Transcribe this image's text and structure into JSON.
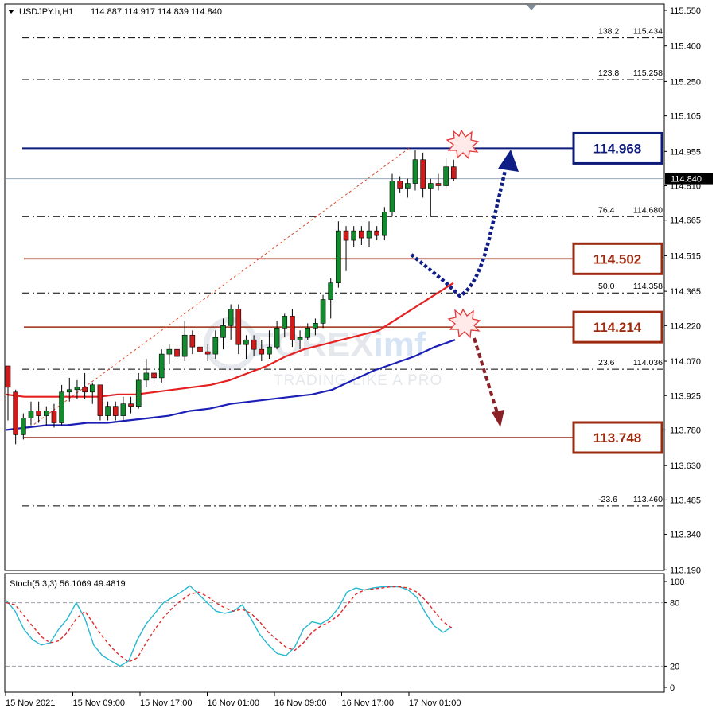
{
  "chart_data": {
    "type": "candlestick",
    "header": {
      "symbol": "USDJPY.h,H1",
      "ohlc": "114.887 114.917 114.839 114.840"
    },
    "price_axis": {
      "ylim": [
        113.15,
        115.58
      ],
      "ticks": [
        "115.550",
        "115.400",
        "115.250",
        "115.105",
        "114.955",
        "114.810",
        "114.665",
        "114.515",
        "114.365",
        "114.220",
        "114.070",
        "113.925",
        "113.780",
        "113.630",
        "113.485",
        "113.340",
        "113.190"
      ],
      "current_price": "114.840"
    },
    "time_axis": {
      "labels": [
        "15 Nov 2021",
        "15 Nov 09:00",
        "15 Nov 17:00",
        "16 Nov 01:00",
        "16 Nov 09:00",
        "16 Nov 17:00",
        "17 Nov 01:00"
      ]
    },
    "fib_levels": [
      {
        "ratio": "138.2",
        "price": 115.434,
        "text": "115.434"
      },
      {
        "ratio": "123.8",
        "price": 115.258,
        "text": "115.258"
      },
      {
        "ratio": "76.4",
        "price": 114.68,
        "text": "114.680"
      },
      {
        "ratio": "50.0",
        "price": 114.358,
        "text": "114.358"
      },
      {
        "ratio": "23.6",
        "price": 114.036,
        "text": "114.036"
      },
      {
        "ratio": "-23.6",
        "price": 113.46,
        "text": "113.460"
      }
    ],
    "key_levels": [
      {
        "price": 114.968,
        "text": "114.968",
        "color": "#0d1b7a"
      },
      {
        "price": 114.502,
        "text": "114.502",
        "color": "#9b2a10"
      },
      {
        "price": 114.214,
        "text": "114.214",
        "color": "#9b2a10"
      },
      {
        "price": 113.748,
        "text": "113.748",
        "color": "#9b2a10"
      }
    ],
    "candles": [
      {
        "o": 114.05,
        "h": 114.05,
        "l": 113.82,
        "c": 113.96
      },
      {
        "o": 113.94,
        "h": 113.95,
        "l": 113.72,
        "c": 113.76
      },
      {
        "o": 113.76,
        "h": 113.85,
        "l": 113.74,
        "c": 113.83
      },
      {
        "o": 113.83,
        "h": 113.9,
        "l": 113.8,
        "c": 113.86
      },
      {
        "o": 113.86,
        "h": 113.9,
        "l": 113.81,
        "c": 113.84
      },
      {
        "o": 113.84,
        "h": 113.88,
        "l": 113.8,
        "c": 113.86
      },
      {
        "o": 113.86,
        "h": 113.89,
        "l": 113.79,
        "c": 113.81
      },
      {
        "o": 113.81,
        "h": 113.97,
        "l": 113.8,
        "c": 113.94
      },
      {
        "o": 113.94,
        "h": 114.0,
        "l": 113.9,
        "c": 113.95
      },
      {
        "o": 113.95,
        "h": 113.99,
        "l": 113.91,
        "c": 113.96
      },
      {
        "o": 113.96,
        "h": 114.02,
        "l": 113.91,
        "c": 113.94
      },
      {
        "o": 113.94,
        "h": 113.98,
        "l": 113.89,
        "c": 113.97
      },
      {
        "o": 113.97,
        "h": 113.97,
        "l": 113.82,
        "c": 113.84
      },
      {
        "o": 113.84,
        "h": 113.9,
        "l": 113.82,
        "c": 113.88
      },
      {
        "o": 113.88,
        "h": 113.9,
        "l": 113.82,
        "c": 113.84
      },
      {
        "o": 113.84,
        "h": 113.92,
        "l": 113.82,
        "c": 113.89
      },
      {
        "o": 113.89,
        "h": 113.92,
        "l": 113.85,
        "c": 113.88
      },
      {
        "o": 113.88,
        "h": 114.02,
        "l": 113.87,
        "c": 113.99
      },
      {
        "o": 113.99,
        "h": 114.08,
        "l": 113.96,
        "c": 114.02
      },
      {
        "o": 114.02,
        "h": 114.04,
        "l": 113.98,
        "c": 114.0
      },
      {
        "o": 114.0,
        "h": 114.12,
        "l": 113.98,
        "c": 114.1
      },
      {
        "o": 114.1,
        "h": 114.14,
        "l": 114.06,
        "c": 114.12
      },
      {
        "o": 114.12,
        "h": 114.14,
        "l": 114.07,
        "c": 114.09
      },
      {
        "o": 114.09,
        "h": 114.24,
        "l": 114.07,
        "c": 114.18
      },
      {
        "o": 114.18,
        "h": 114.2,
        "l": 114.1,
        "c": 114.13
      },
      {
        "o": 114.13,
        "h": 114.18,
        "l": 114.09,
        "c": 114.11
      },
      {
        "o": 114.11,
        "h": 114.14,
        "l": 114.07,
        "c": 114.1
      },
      {
        "o": 114.1,
        "h": 114.2,
        "l": 114.08,
        "c": 114.17
      },
      {
        "o": 114.17,
        "h": 114.25,
        "l": 114.12,
        "c": 114.22
      },
      {
        "o": 114.22,
        "h": 114.31,
        "l": 114.16,
        "c": 114.29
      },
      {
        "o": 114.29,
        "h": 114.31,
        "l": 114.1,
        "c": 114.14
      },
      {
        "o": 114.14,
        "h": 114.18,
        "l": 114.08,
        "c": 114.16
      },
      {
        "o": 114.16,
        "h": 114.18,
        "l": 114.09,
        "c": 114.12
      },
      {
        "o": 114.12,
        "h": 114.16,
        "l": 114.07,
        "c": 114.1
      },
      {
        "o": 114.1,
        "h": 114.2,
        "l": 114.08,
        "c": 114.13
      },
      {
        "o": 114.13,
        "h": 114.24,
        "l": 114.12,
        "c": 114.21
      },
      {
        "o": 114.21,
        "h": 114.27,
        "l": 114.17,
        "c": 114.26
      },
      {
        "o": 114.26,
        "h": 114.29,
        "l": 114.13,
        "c": 114.16
      },
      {
        "o": 114.16,
        "h": 114.2,
        "l": 114.12,
        "c": 114.17
      },
      {
        "o": 114.17,
        "h": 114.23,
        "l": 114.16,
        "c": 114.21
      },
      {
        "o": 114.21,
        "h": 114.25,
        "l": 114.18,
        "c": 114.23
      },
      {
        "o": 114.23,
        "h": 114.35,
        "l": 114.21,
        "c": 114.33
      },
      {
        "o": 114.33,
        "h": 114.42,
        "l": 114.25,
        "c": 114.4
      },
      {
        "o": 114.4,
        "h": 114.66,
        "l": 114.38,
        "c": 114.62
      },
      {
        "o": 114.62,
        "h": 114.64,
        "l": 114.45,
        "c": 114.58
      },
      {
        "o": 114.58,
        "h": 114.64,
        "l": 114.55,
        "c": 114.62
      },
      {
        "o": 114.62,
        "h": 114.64,
        "l": 114.56,
        "c": 114.59
      },
      {
        "o": 114.59,
        "h": 114.66,
        "l": 114.55,
        "c": 114.62
      },
      {
        "o": 114.62,
        "h": 114.64,
        "l": 114.58,
        "c": 114.6
      },
      {
        "o": 114.6,
        "h": 114.72,
        "l": 114.58,
        "c": 114.7
      },
      {
        "o": 114.7,
        "h": 114.86,
        "l": 114.68,
        "c": 114.83
      },
      {
        "o": 114.83,
        "h": 114.85,
        "l": 114.78,
        "c": 114.8
      },
      {
        "o": 114.8,
        "h": 114.84,
        "l": 114.76,
        "c": 114.82
      },
      {
        "o": 114.82,
        "h": 114.96,
        "l": 114.79,
        "c": 114.92
      },
      {
        "o": 114.92,
        "h": 114.95,
        "l": 114.76,
        "c": 114.8
      },
      {
        "o": 114.8,
        "h": 114.84,
        "l": 114.68,
        "c": 114.82
      },
      {
        "o": 114.82,
        "h": 114.86,
        "l": 114.79,
        "c": 114.81
      },
      {
        "o": 114.81,
        "h": 114.93,
        "l": 114.8,
        "c": 114.89
      },
      {
        "o": 114.89,
        "h": 114.92,
        "l": 114.83,
        "c": 114.84
      }
    ],
    "ma_fast": [
      113.93,
      113.92,
      113.92,
      113.92,
      113.92,
      113.92,
      113.93,
      113.93,
      113.94,
      113.95,
      113.96,
      113.97,
      113.99,
      114.02,
      114.05,
      114.09,
      114.12,
      114.14,
      114.16,
      114.18,
      114.2,
      114.25,
      114.3,
      114.35,
      114.4
    ],
    "ma_slow": [
      113.78,
      113.79,
      113.8,
      113.8,
      113.81,
      113.81,
      113.82,
      113.83,
      113.84,
      113.86,
      113.87,
      113.89,
      113.9,
      113.91,
      113.92,
      113.93,
      113.95,
      113.99,
      114.03,
      114.06,
      114.09,
      114.13,
      114.16
    ],
    "watermark": {
      "brand_a": "FOREX",
      "brand_b": "imf",
      "tagline": "TRADING LIKE A PRO"
    },
    "stochastic": {
      "label": "Stoch(5,3,3) 56.1069 49.4819",
      "ylim": [
        0,
        100
      ],
      "ticks": [
        "100",
        "80",
        "20",
        "0"
      ],
      "k": [
        82,
        72,
        55,
        45,
        40,
        42,
        55,
        65,
        80,
        65,
        40,
        30,
        25,
        20,
        25,
        45,
        60,
        70,
        80,
        85,
        90,
        96,
        88,
        80,
        72,
        70,
        72,
        78,
        65,
        50,
        40,
        32,
        30,
        38,
        55,
        62,
        60,
        65,
        75,
        90,
        94,
        92,
        94,
        95,
        95,
        95,
        92,
        85,
        70,
        58,
        52,
        57
      ],
      "d": [
        80,
        78,
        68,
        58,
        48,
        42,
        44,
        52,
        65,
        72,
        60,
        48,
        38,
        30,
        24,
        28,
        42,
        55,
        66,
        75,
        82,
        88,
        90,
        86,
        80,
        75,
        72,
        74,
        70,
        62,
        52,
        45,
        38,
        35,
        42,
        52,
        58,
        62,
        68,
        78,
        88,
        92,
        93,
        94,
        95,
        95,
        94,
        90,
        82,
        72,
        62,
        56
      ]
    }
  }
}
